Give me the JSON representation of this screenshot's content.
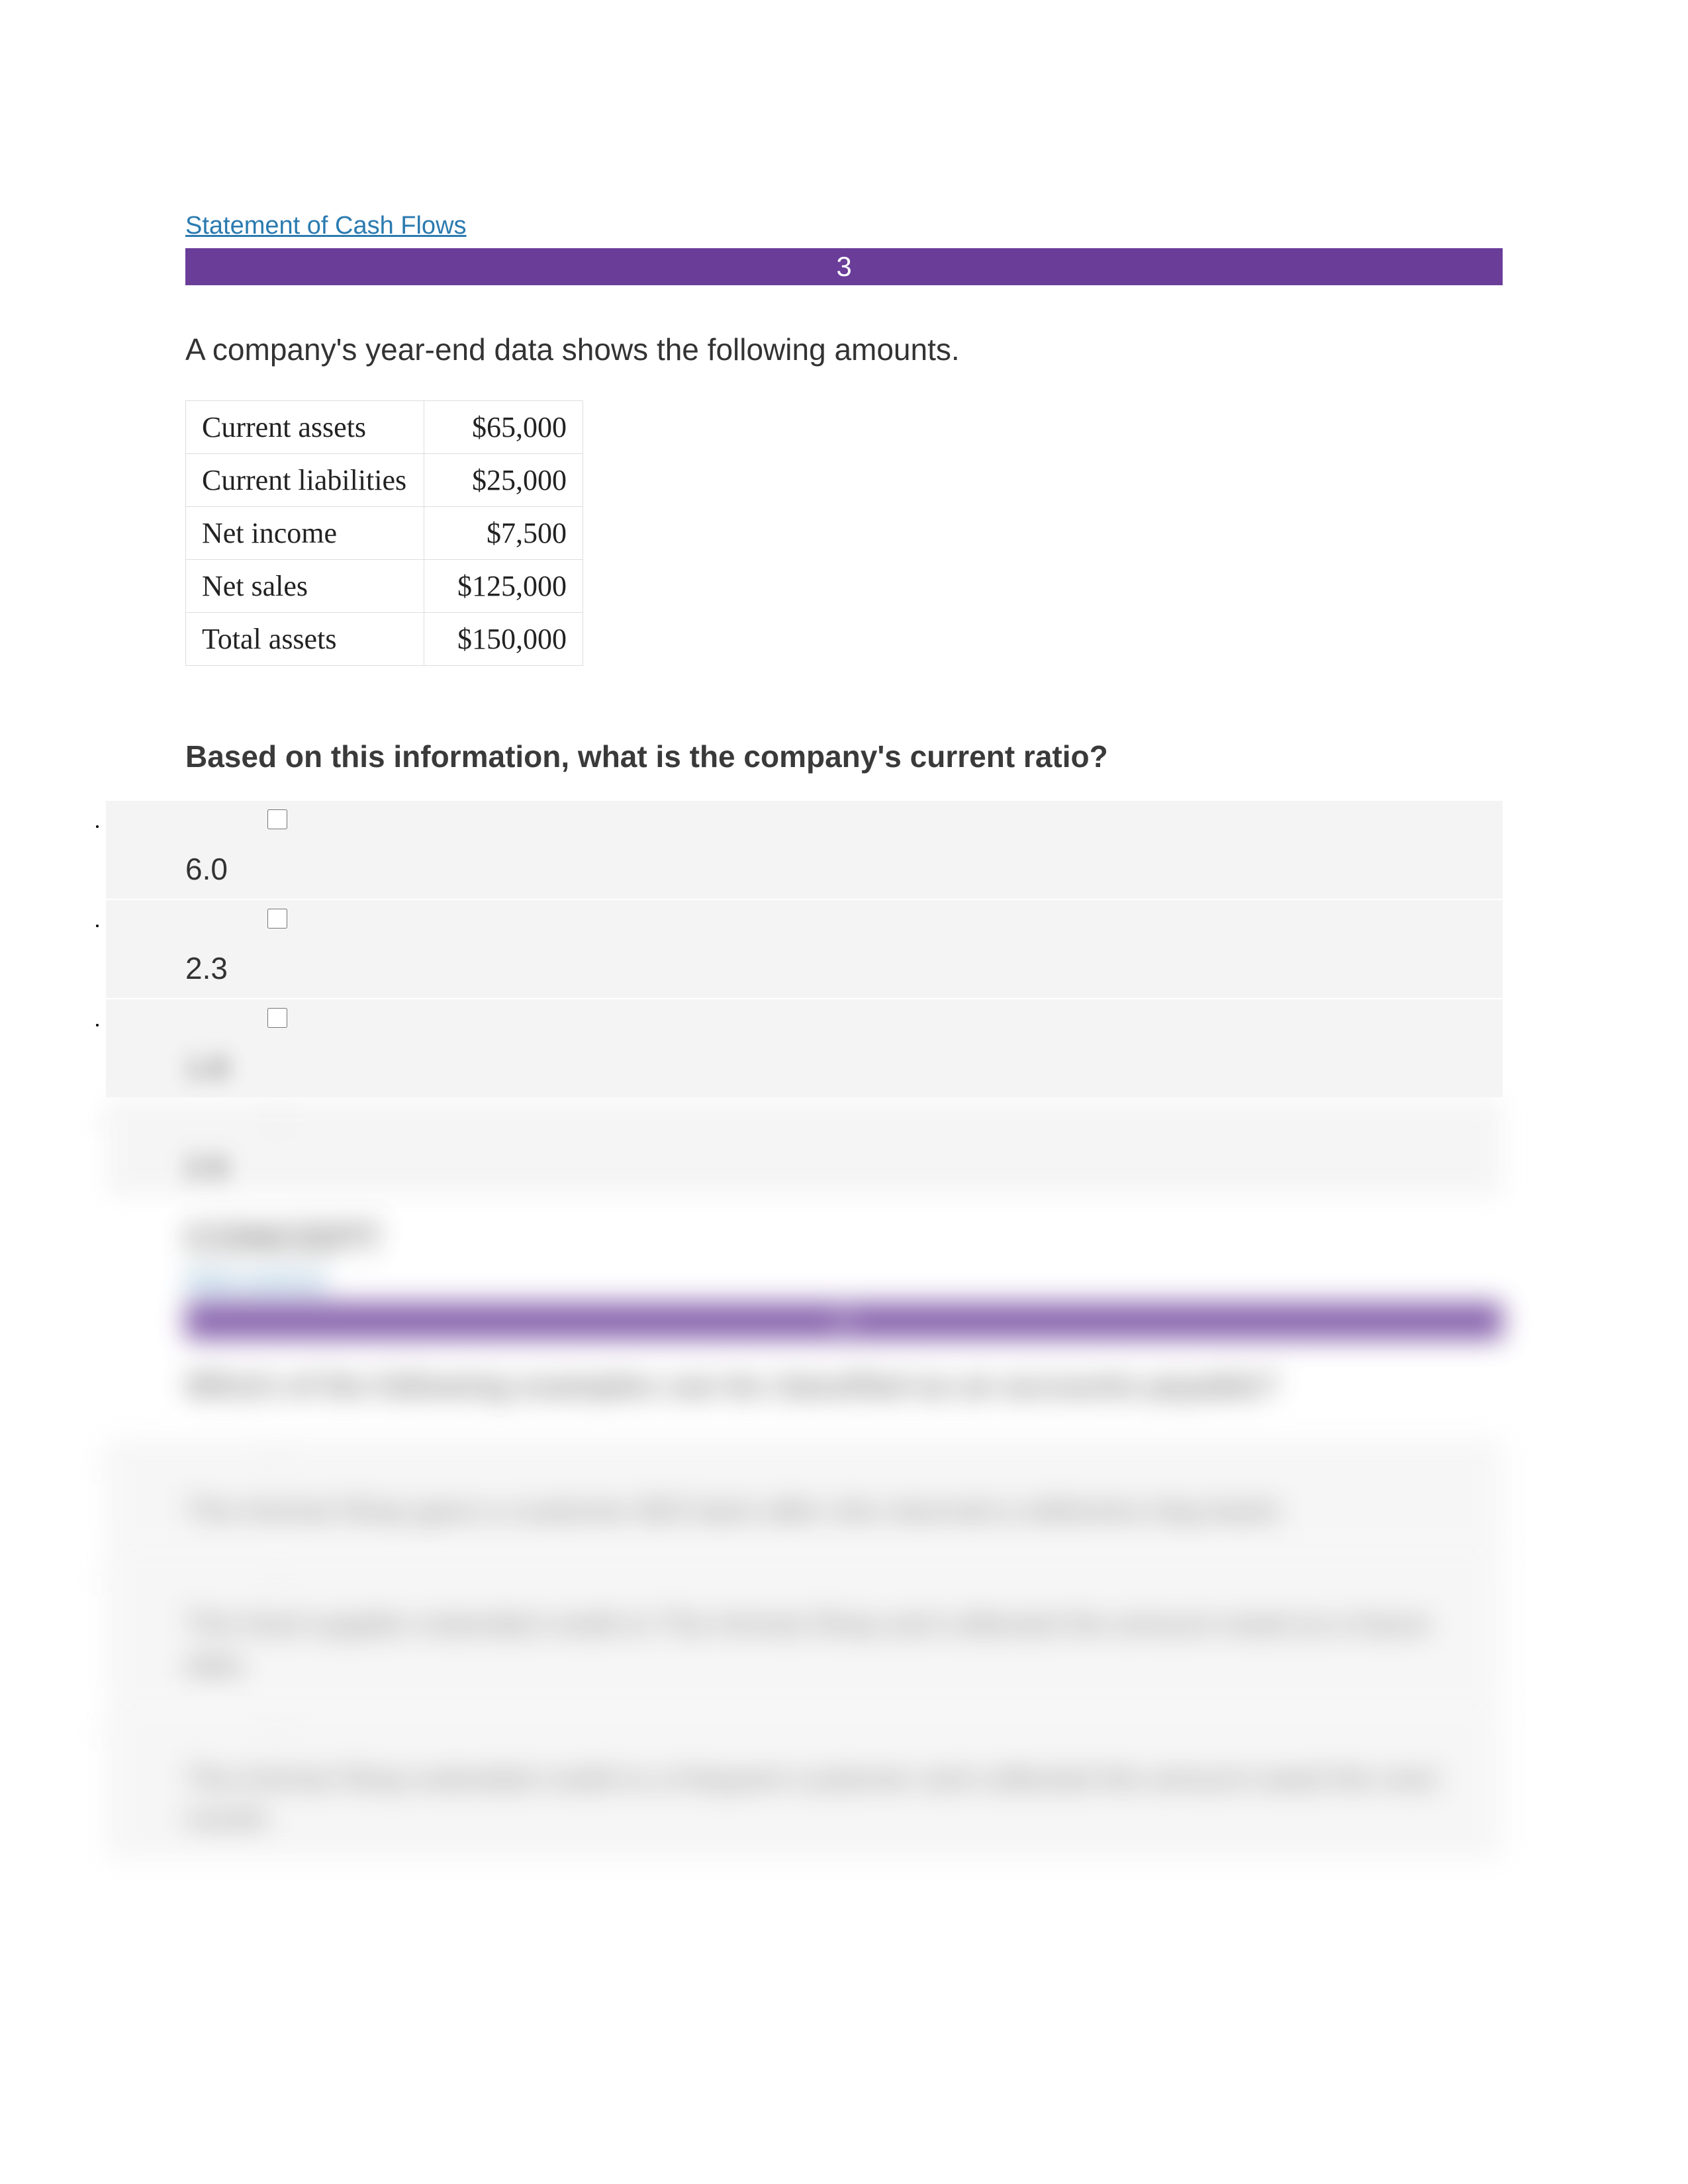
{
  "topLink": "Statement of Cash Flows",
  "question1Number": "3",
  "intro": "A company's year-end data shows the following amounts.",
  "dataTable": {
    "rows": [
      {
        "label": "Current assets",
        "value": "$65,000"
      },
      {
        "label": "Current liabilities",
        "value": "$25,000"
      },
      {
        "label": "Net income",
        "value": "$7,500"
      },
      {
        "label": "Net sales",
        "value": "$125,000"
      },
      {
        "label": "Total assets",
        "value": "$150,000"
      }
    ]
  },
  "question1": "Based on this information, what is the company's current ratio?",
  "q1Options": [
    {
      "label": "6.0",
      "blurred": false
    },
    {
      "label": "2.3",
      "blurred": false
    },
    {
      "label": "1.8",
      "blurred": true
    },
    {
      "label": "2.6",
      "blurred": true
    }
  ],
  "conceptHeading": "CONCEPT",
  "subLink": "Ratio Analysis",
  "question2Number": "4",
  "question2": "Which of the following examples can be classified as an accounts payable?",
  "q2Options": [
    "The Animal Shop gave a customer $20 back after she returned a defective dog leash.",
    "The food supplier extended credit to The Animal Shop and collected the amount owed at a future date.",
    "The Animal Shop extended credit to a frequent customer and collected the amount owed the next month."
  ],
  "colors": {
    "purple": "#6a3d99",
    "link": "#2a7ab0",
    "optionBg": "#f4f4f4"
  }
}
